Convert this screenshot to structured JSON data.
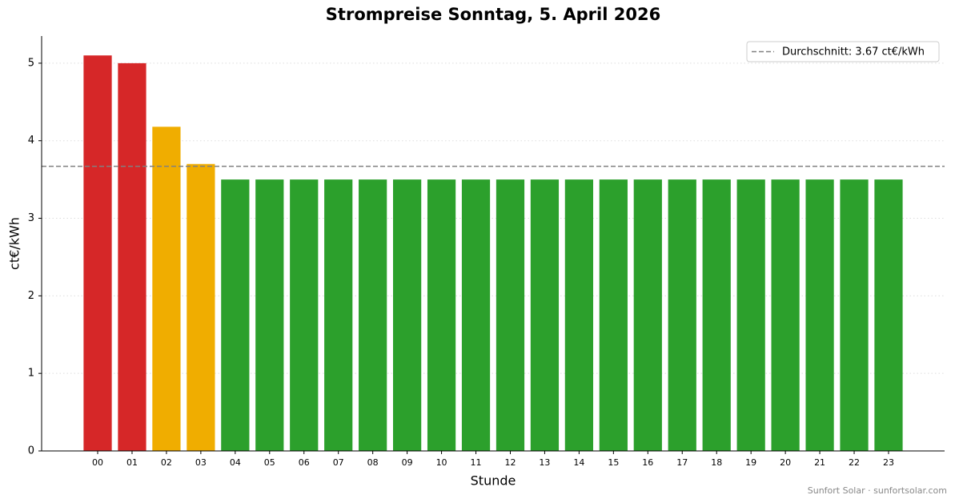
{
  "chart_data": {
    "type": "bar",
    "title": "Strompreise Sonntag, 5. April 2026",
    "x_label": "Stunde",
    "y_label": "ct€/kWh",
    "categories": [
      "00",
      "01",
      "02",
      "03",
      "04",
      "05",
      "06",
      "07",
      "08",
      "09",
      "10",
      "11",
      "12",
      "13",
      "14",
      "15",
      "16",
      "17",
      "18",
      "19",
      "20",
      "21",
      "22",
      "23"
    ],
    "values": [
      5.1,
      5.0,
      4.18,
      3.7,
      3.5,
      3.5,
      3.5,
      3.5,
      3.5,
      3.5,
      3.5,
      3.5,
      3.5,
      3.5,
      3.5,
      3.5,
      3.5,
      3.5,
      3.5,
      3.5,
      3.5,
      3.5,
      3.5,
      3.5
    ],
    "colors": [
      "#d62728",
      "#d62728",
      "#f0ad00",
      "#f0ad00",
      "#2ca02c",
      "#2ca02c",
      "#2ca02c",
      "#2ca02c",
      "#2ca02c",
      "#2ca02c",
      "#2ca02c",
      "#2ca02c",
      "#2ca02c",
      "#2ca02c",
      "#2ca02c",
      "#2ca02c",
      "#2ca02c",
      "#2ca02c",
      "#2ca02c",
      "#2ca02c",
      "#2ca02c",
      "#2ca02c",
      "#2ca02c",
      "#2ca02c"
    ],
    "ylim": [
      0,
      5.35
    ],
    "yticks": [
      0,
      1,
      2,
      3,
      4,
      5
    ],
    "grid": true,
    "average": {
      "value": 3.67,
      "label": "Durchschnitt: 3.67 ct€/kWh",
      "color": "#808080"
    },
    "legend": "upper right",
    "footer": "Sunfort Solar · sunfortsolar.com"
  }
}
